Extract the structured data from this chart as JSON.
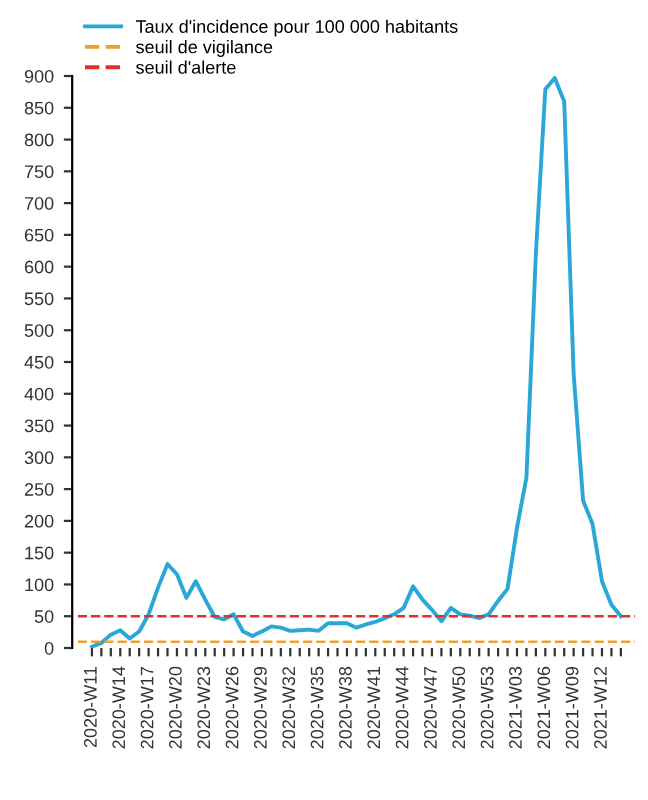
{
  "chart_data": {
    "type": "line",
    "categories": [
      "2020-W11",
      null,
      null,
      "2020-W14",
      null,
      null,
      "2020-W17",
      null,
      null,
      "2020-W20",
      null,
      null,
      "2020-W23",
      null,
      null,
      "2020-W26",
      null,
      null,
      "2020-W29",
      null,
      null,
      "2020-W32",
      null,
      null,
      "2020-W35",
      null,
      null,
      "2020-W38",
      null,
      null,
      "2020-W41",
      null,
      null,
      "2020-W44",
      null,
      null,
      "2020-W47",
      null,
      null,
      "2020-W50",
      null,
      null,
      "2020-W53",
      null,
      null,
      "2021-W03",
      null,
      null,
      "2021-W06",
      null,
      null,
      "2021-W09",
      null,
      null,
      "2021-W12",
      null,
      null
    ],
    "series": [
      {
        "name": "Taux d'incidence pour 100 000 habitants",
        "color": "#29a8d8",
        "values": [
          2,
          8,
          21,
          28,
          15,
          26,
          53,
          95,
          132,
          116,
          79,
          105,
          76,
          49,
          45,
          53,
          26,
          19,
          26,
          34,
          32,
          27,
          28,
          29,
          27,
          39,
          39,
          39,
          32,
          37,
          41,
          47,
          53,
          63,
          97,
          76,
          60,
          42,
          63,
          53,
          51,
          47,
          53,
          74,
          93,
          189,
          268,
          620,
          879,
          897,
          860,
          431,
          232,
          195,
          105,
          68,
          50
        ]
      }
    ],
    "ref_lines": [
      {
        "axis": "y",
        "value": 10,
        "label": "seuil de vigilance",
        "color": "#f0a030",
        "line_style": "dashed"
      },
      {
        "axis": "y",
        "value": 50,
        "label": "seuil d'alerte",
        "color": "#e0302a",
        "line_style": "dashed"
      }
    ],
    "ylim": [
      0,
      900
    ],
    "yticks": [
      0,
      50,
      100,
      150,
      200,
      250,
      300,
      350,
      400,
      450,
      500,
      550,
      600,
      650,
      700,
      750,
      800,
      850,
      900
    ],
    "grid": false,
    "legend": "top left",
    "marker": "none",
    "line_style": "solid"
  }
}
